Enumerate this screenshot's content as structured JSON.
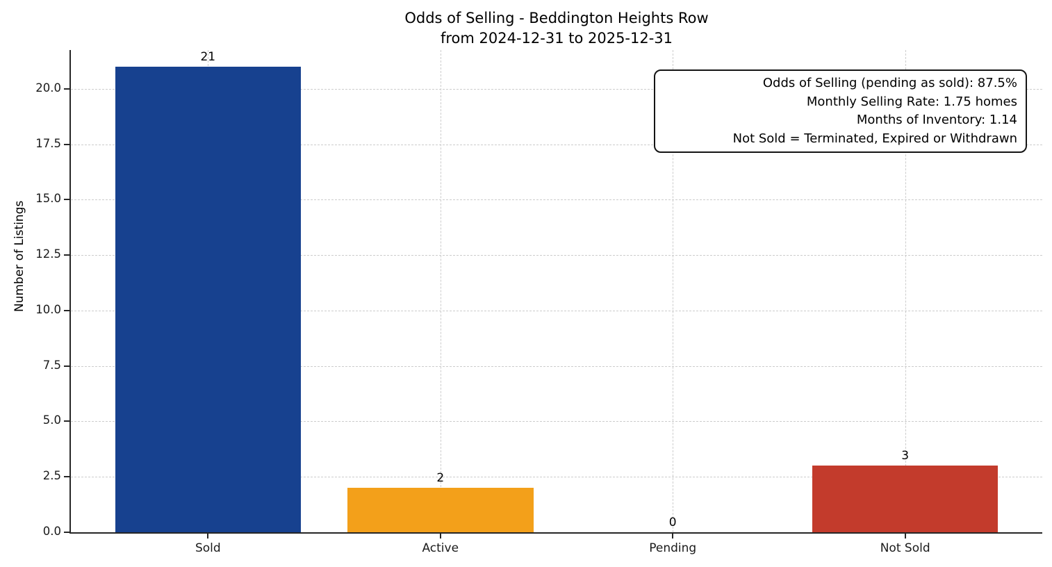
{
  "chart_data": {
    "type": "bar",
    "title_lines": [
      "Odds of Selling - Beddington Heights Row",
      "from 2024-12-31 to 2025-12-31"
    ],
    "categories": [
      "Sold",
      "Active",
      "Pending",
      "Not Sold"
    ],
    "values": [
      21,
      2,
      0,
      3
    ],
    "bar_labels": [
      "21",
      "2",
      "0",
      "3"
    ],
    "bar_colors": [
      "#17418f",
      "#f3a01a",
      null,
      "#c33b2c"
    ],
    "ylabel": "Number of Listings",
    "xlabel": "",
    "ylim": [
      0,
      21.75
    ],
    "yticks": [
      0.0,
      2.5,
      5.0,
      7.5,
      10.0,
      12.5,
      15.0,
      17.5,
      20.0
    ],
    "ytick_labels": [
      "0.0",
      "2.5",
      "5.0",
      "7.5",
      "10.0",
      "12.5",
      "15.0",
      "17.5",
      "20.0"
    ],
    "grid": true,
    "legend": null,
    "annotation": {
      "lines": [
        "Odds of Selling (pending as sold): 87.5%",
        "Monthly Selling Rate: 1.75 homes",
        "Months of Inventory: 1.14",
        "Not Sold = Terminated, Expired or Withdrawn"
      ]
    },
    "axis_color": "#262626",
    "grid_color": "#cccccc",
    "background_color": "#ffffff"
  }
}
